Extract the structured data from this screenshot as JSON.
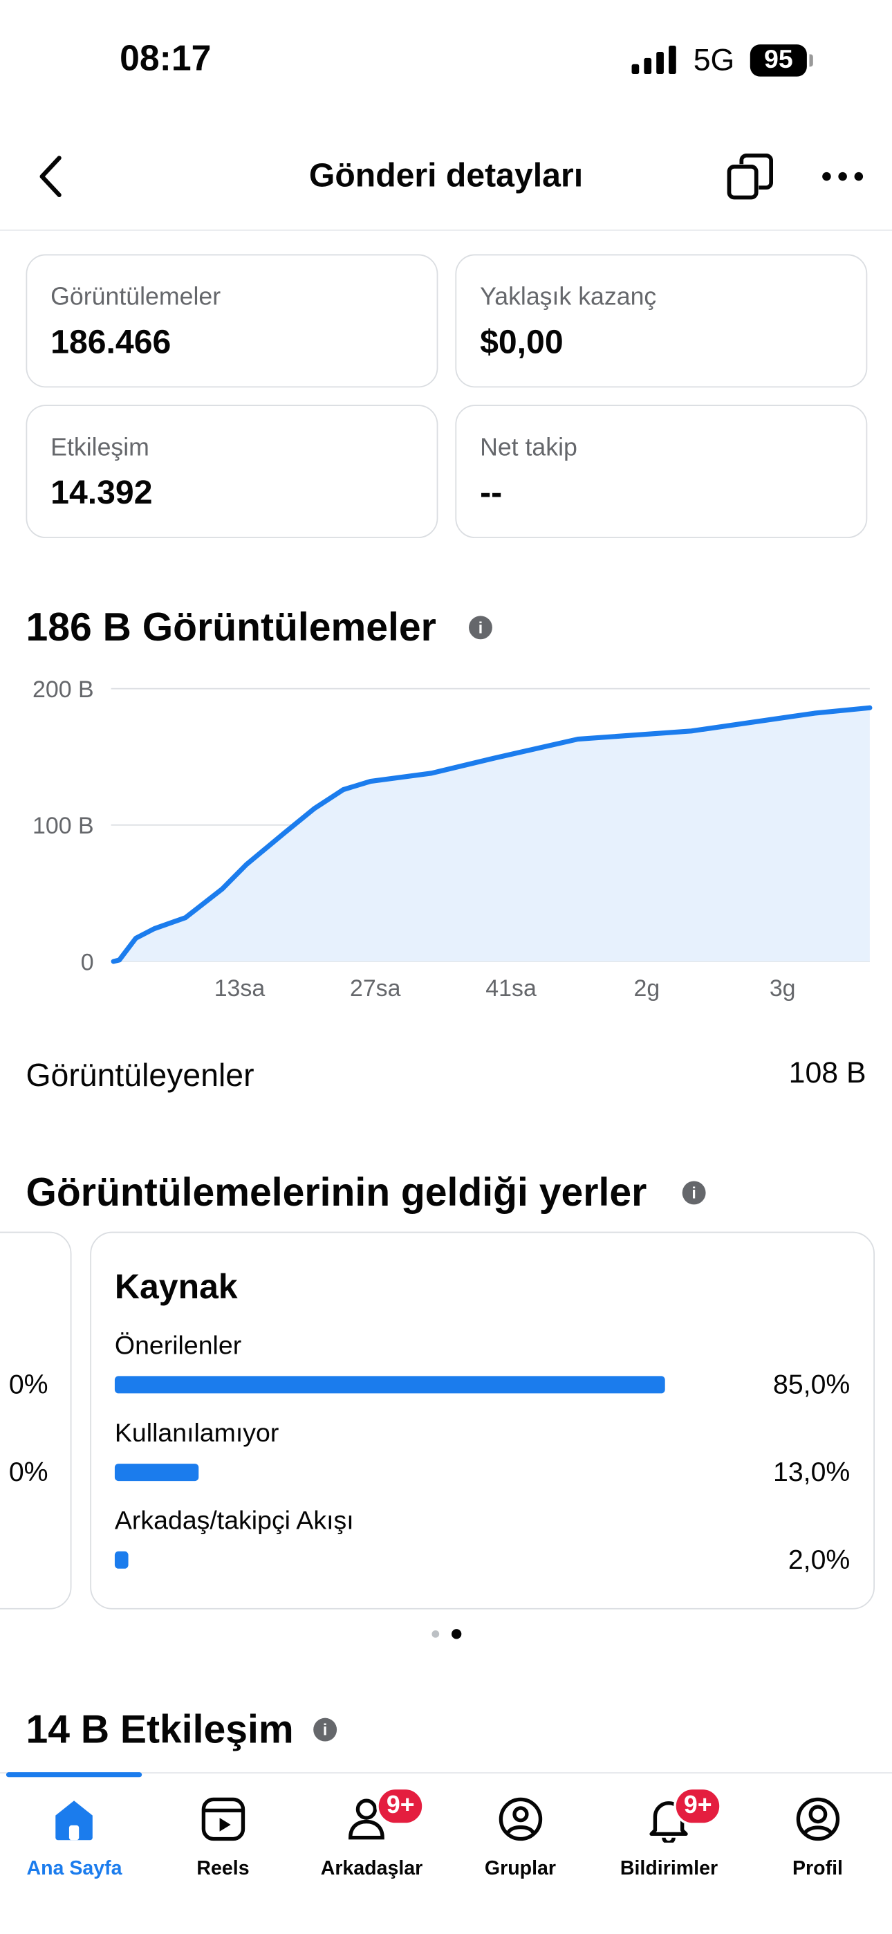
{
  "status_bar": {
    "time": "08:17",
    "network": "5G",
    "battery": "95"
  },
  "header": {
    "title": "Gönderi detayları"
  },
  "stats": [
    {
      "label": "Görüntülemeler",
      "value": "186.466"
    },
    {
      "label": "Yaklaşık kazanç",
      "value": "$0,00"
    },
    {
      "label": "Etkileşim",
      "value": "14.392"
    },
    {
      "label": "Net takip",
      "value": "--"
    }
  ],
  "chart_data": {
    "type": "area",
    "title": "186 B Görüntülemeler",
    "color": "#1b7ced",
    "fill": "#e7f1fd",
    "x": [
      0,
      0.6,
      2.3,
      4.2,
      7.4,
      11.2,
      13.7,
      17.6,
      20.7,
      23.7,
      26.5,
      32.8,
      39.2,
      47.9,
      59.6,
      72.3,
      78
    ],
    "values": [
      0,
      1000,
      17000,
      24000,
      32000,
      53000,
      71000,
      94000,
      112000,
      126000,
      132000,
      138000,
      149000,
      163000,
      169000,
      182000,
      186000
    ],
    "xlim": [
      0,
      78
    ],
    "xticks": [
      {
        "value": 13,
        "label": "13sa"
      },
      {
        "value": 27,
        "label": "27sa"
      },
      {
        "value": 41,
        "label": "41sa"
      },
      {
        "value": 55,
        "label": "2g"
      },
      {
        "value": 69,
        "label": "3g"
      }
    ],
    "ylim": [
      0,
      200000
    ],
    "yticks": [
      0,
      {
        "value": 100000,
        "label": "100 B"
      },
      {
        "value": 200000,
        "label": "200 B"
      }
    ],
    "grid": true
  },
  "viewers": {
    "label": "Görüntüleyenler",
    "value": "108 B"
  },
  "sources": {
    "title": "Görüntülemelerinin geldiği yerler",
    "prev_card": [
      "0%",
      "0%"
    ],
    "card": {
      "title": "Kaynak",
      "color": "#1b7ced",
      "categories": [
        "Önerilenler",
        "Kullanılamıyor",
        "Arkadaş/takipçi Akışı"
      ],
      "values": [
        85,
        13,
        2
      ],
      "value_labels": [
        "85,0%",
        "13,0%",
        "2,0%"
      ]
    }
  },
  "engagement": {
    "title": "14 B Etkileşim"
  },
  "tabs": [
    {
      "label": "Ana Sayfa"
    },
    {
      "label": "Reels"
    },
    {
      "label": "Arkadaşlar",
      "badge": "9+"
    },
    {
      "label": "Gruplar"
    },
    {
      "label": "Bildirimler",
      "badge": "9+"
    },
    {
      "label": "Profil"
    }
  ]
}
